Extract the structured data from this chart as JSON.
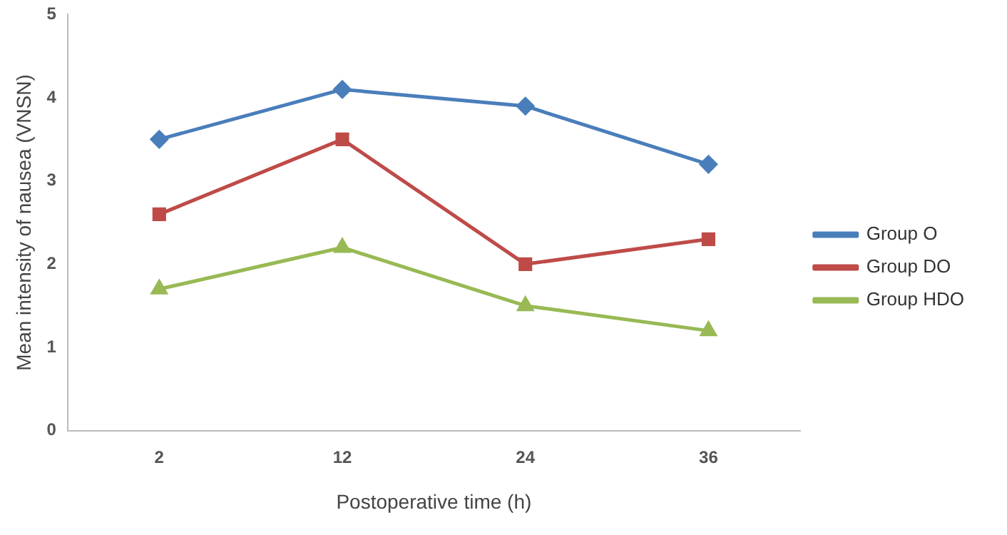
{
  "chart_data": {
    "type": "line",
    "xlabel": "Postoperative time (h)",
    "ylabel": "Mean intensity of nausea (VNSN)",
    "categories": [
      "2",
      "12",
      "24",
      "36"
    ],
    "series": [
      {
        "name": "Group O",
        "color": "#4a7ebb",
        "marker": "diamond",
        "values": [
          3.5,
          4.1,
          3.9,
          3.2
        ]
      },
      {
        "name": "Group DO",
        "color": "#be4b48",
        "marker": "square",
        "values": [
          2.6,
          3.5,
          2.0,
          2.3
        ]
      },
      {
        "name": "Group HDO",
        "color": "#98b954",
        "marker": "triangle",
        "values": [
          1.7,
          2.2,
          1.5,
          1.2
        ]
      }
    ],
    "ylim": [
      0,
      5
    ],
    "yticks": [
      0,
      1,
      2,
      3,
      4,
      5
    ],
    "grid": false,
    "legend": "right"
  }
}
